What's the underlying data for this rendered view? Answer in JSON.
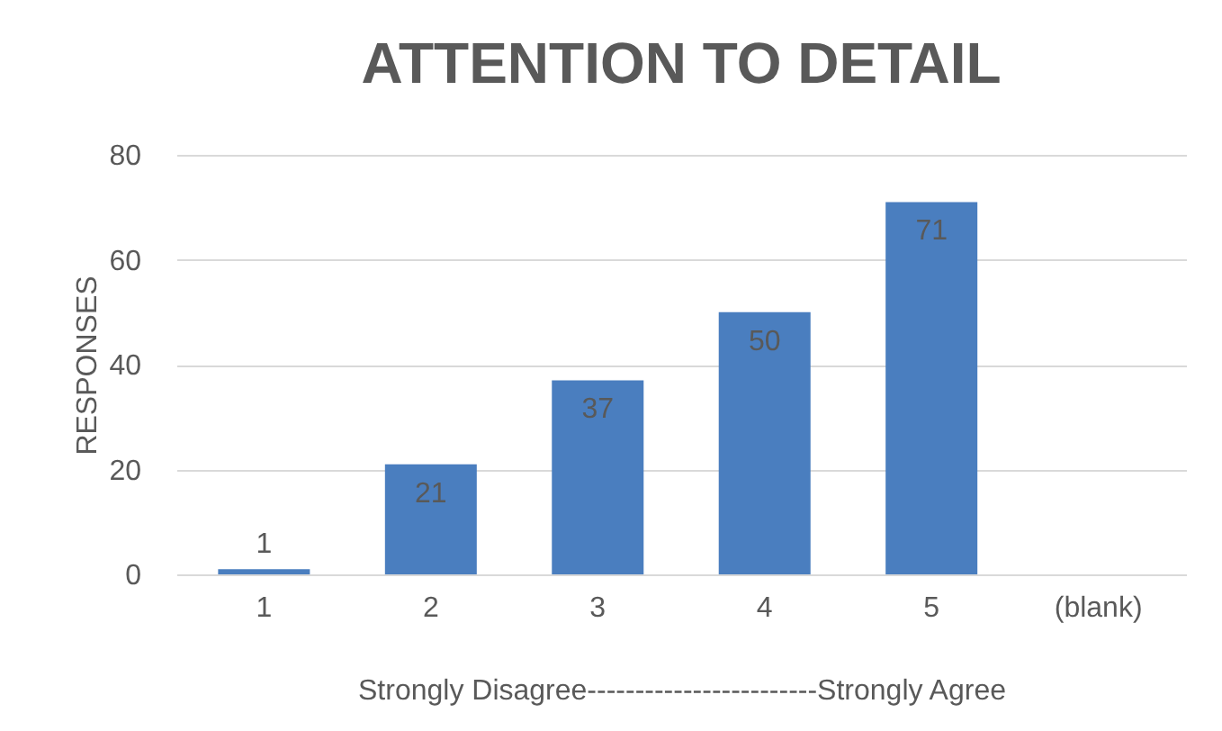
{
  "chart_data": {
    "type": "bar",
    "title": "ATTENTION TO DETAIL",
    "ylabel": "RESPONSES",
    "xlabel": "Strongly Disagree------------------------Strongly Agree",
    "categories": [
      "1",
      "2",
      "3",
      "4",
      "5",
      "(blank)"
    ],
    "values": [
      1,
      21,
      37,
      50,
      71,
      null
    ],
    "color": "#4a7ebf",
    "ylim": [
      0,
      80
    ],
    "yticks": [
      0,
      20,
      40,
      60,
      80
    ],
    "grid": "y",
    "data_labels": true
  }
}
